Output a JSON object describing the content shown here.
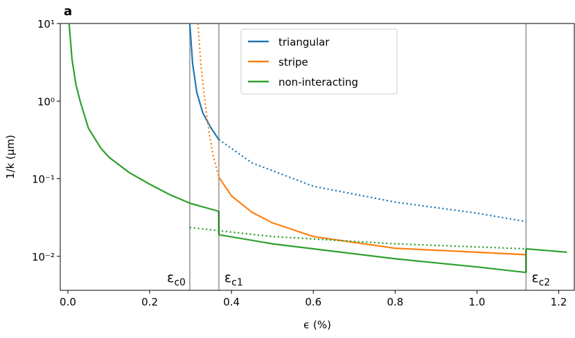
{
  "chart_data": {
    "type": "line",
    "panel_label": "a",
    "x_label": "ϵ (%)",
    "y_label": "1/k (μm)",
    "xlim": [
      -0.0186,
      1.238
    ],
    "xticks": [
      {
        "value": 0,
        "label": "0.0"
      },
      0.2,
      0.4,
      0.6,
      0.8,
      {
        "value": 1,
        "label": "1.0"
      },
      1.2
    ],
    "ylim": [
      0.00365,
      10
    ],
    "y_scale": "log",
    "yticks": [
      {
        "value": 0.01,
        "label": "10⁻²"
      },
      {
        "value": 0.1,
        "label": "10⁻¹"
      },
      {
        "value": 1,
        "label": "10⁰"
      },
      {
        "value": 10,
        "label": "10¹"
      }
    ],
    "legend": "upper center",
    "markers": [
      {
        "x": 0.298,
        "symbol": "ε",
        "sub": "c0",
        "side": "left",
        "color": "#aaaaaa"
      },
      {
        "x": 0.369,
        "symbol": "ε",
        "sub": "c1",
        "side": "right",
        "color": "#aaaaaa"
      },
      {
        "x": 1.12,
        "symbol": "ε",
        "sub": "c2",
        "side": "right",
        "color": "#aaaaaa"
      }
    ],
    "series": [
      {
        "name": "triangular",
        "color": "#1f77b4",
        "segments": [
          {
            "style": "solid",
            "x": [
              0.298,
              0.305,
              0.315,
              0.33,
              0.35,
              0.369
            ],
            "values": [
              10,
              3,
              1.3,
              0.7,
              0.45,
              0.32
            ]
          },
          {
            "style": "dotted",
            "x": [
              0.369,
              0.45,
              0.6,
              0.8,
              1.0,
              1.12
            ],
            "values": [
              0.32,
              0.16,
              0.08,
              0.05,
              0.036,
              0.028
            ]
          }
        ]
      },
      {
        "name": "stripe",
        "color": "#ff7f0e",
        "segments": [
          {
            "style": "dotted",
            "x": [
              0.318,
              0.325,
              0.335,
              0.345,
              0.355,
              0.369
            ],
            "values": [
              10,
              3,
              1,
              0.4,
              0.2,
              0.105
            ]
          },
          {
            "style": "solid",
            "x": [
              0.369,
              0.4,
              0.45,
              0.5,
              0.6,
              0.8,
              1.0,
              1.12
            ],
            "values": [
              0.105,
              0.06,
              0.037,
              0.027,
              0.018,
              0.0127,
              0.0113,
              0.0105
            ]
          }
        ]
      },
      {
        "name": "non-interacting",
        "color": "#2ca02c",
        "segments": [
          {
            "style": "solid",
            "x": [
              0.003,
              0.01,
              0.02,
              0.03,
              0.05,
              0.08,
              0.1,
              0.15,
              0.2,
              0.25,
              0.3,
              0.369
            ],
            "values": [
              10,
              3.5,
              1.6,
              1.0,
              0.45,
              0.25,
              0.19,
              0.12,
              0.085,
              0.062,
              0.048,
              0.038
            ]
          },
          {
            "style": "solid",
            "x": [
              0.369,
              0.369
            ],
            "values": [
              0.038,
              0.019
            ]
          },
          {
            "style": "solid",
            "x": [
              0.369,
              0.5,
              0.6,
              0.8,
              1.0,
              1.12
            ],
            "values": [
              0.019,
              0.0145,
              0.0125,
              0.0093,
              0.0073,
              0.0062
            ]
          },
          {
            "style": "solid",
            "x": [
              1.12,
              1.12
            ],
            "values": [
              0.0062,
              0.0125
            ]
          },
          {
            "style": "solid",
            "x": [
              1.12,
              1.22
            ],
            "values": [
              0.0125,
              0.0113
            ]
          },
          {
            "style": "dotted",
            "x": [
              0.298,
              0.5,
              0.8,
              1.12
            ],
            "values": [
              0.0235,
              0.018,
              0.0145,
              0.0125
            ]
          }
        ]
      }
    ]
  }
}
